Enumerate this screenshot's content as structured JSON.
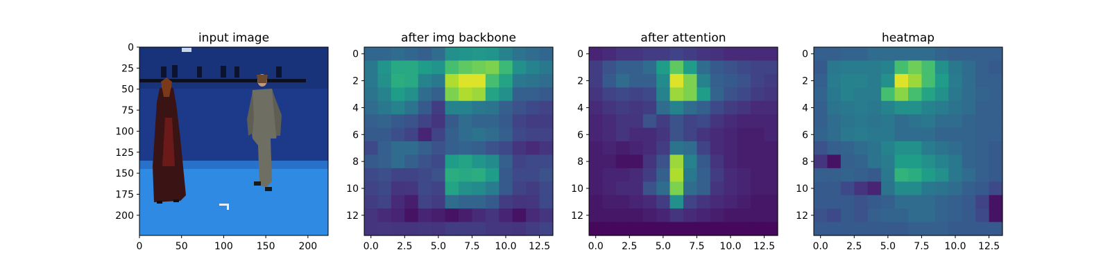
{
  "chart_data": [
    {
      "type": "image",
      "title": "input image",
      "xlim": [
        0,
        224
      ],
      "ylim": [
        224,
        0
      ],
      "xticks": [
        0,
        50,
        100,
        150,
        200
      ],
      "yticks": [
        0,
        25,
        50,
        75,
        100,
        125,
        150,
        175,
        200
      ],
      "xticklabels": [
        "0",
        "50",
        "100",
        "150",
        "200"
      ],
      "yticklabels": [
        "0",
        "25",
        "50",
        "75",
        "100",
        "125",
        "150",
        "175",
        "200"
      ],
      "scene": {
        "backdrop_color": "#1f3c8c",
        "floor_color": "#2f8be3",
        "left_figure": "woman in dark red dress",
        "right_figure": "man in grey clothes"
      }
    },
    {
      "type": "heatmap",
      "title": "after img backbone",
      "colormap": "viridis",
      "xlim": [
        -0.5,
        13.5
      ],
      "ylim": [
        13.5,
        -0.5
      ],
      "xticks": [
        0.0,
        2.5,
        5.0,
        7.5,
        10.0,
        12.5
      ],
      "yticks": [
        0,
        2,
        4,
        6,
        8,
        10,
        12
      ],
      "xticklabels": [
        "0.0",
        "2.5",
        "5.0",
        "7.5",
        "10.0",
        "12.5"
      ],
      "yticklabels": [
        "0",
        "2",
        "4",
        "6",
        "8",
        "10",
        "12"
      ],
      "values": [
        [
          0.33,
          0.33,
          0.35,
          0.33,
          0.3,
          0.35,
          0.5,
          0.52,
          0.53,
          0.52,
          0.45,
          0.38,
          0.35,
          0.33
        ],
        [
          0.4,
          0.52,
          0.6,
          0.6,
          0.55,
          0.52,
          0.7,
          0.75,
          0.78,
          0.8,
          0.68,
          0.5,
          0.45,
          0.4
        ],
        [
          0.4,
          0.5,
          0.62,
          0.6,
          0.45,
          0.4,
          0.88,
          0.95,
          0.95,
          0.7,
          0.58,
          0.4,
          0.38,
          0.35
        ],
        [
          0.38,
          0.45,
          0.55,
          0.5,
          0.35,
          0.3,
          0.8,
          0.88,
          0.85,
          0.58,
          0.5,
          0.3,
          0.3,
          0.28
        ],
        [
          0.35,
          0.4,
          0.45,
          0.38,
          0.28,
          0.18,
          0.45,
          0.45,
          0.4,
          0.38,
          0.3,
          0.25,
          0.22,
          0.2
        ],
        [
          0.3,
          0.32,
          0.28,
          0.25,
          0.2,
          0.15,
          0.28,
          0.35,
          0.32,
          0.32,
          0.28,
          0.2,
          0.18,
          0.18
        ],
        [
          0.28,
          0.28,
          0.24,
          0.2,
          0.1,
          0.2,
          0.3,
          0.35,
          0.38,
          0.35,
          0.3,
          0.22,
          0.2,
          0.2
        ],
        [
          0.22,
          0.3,
          0.35,
          0.35,
          0.3,
          0.25,
          0.3,
          0.32,
          0.3,
          0.25,
          0.22,
          0.15,
          0.12,
          0.15
        ],
        [
          0.28,
          0.3,
          0.35,
          0.3,
          0.25,
          0.22,
          0.55,
          0.58,
          0.52,
          0.48,
          0.3,
          0.2,
          0.22,
          0.22
        ],
        [
          0.22,
          0.24,
          0.2,
          0.2,
          0.22,
          0.25,
          0.62,
          0.6,
          0.62,
          0.55,
          0.28,
          0.22,
          0.22,
          0.25
        ],
        [
          0.2,
          0.22,
          0.15,
          0.16,
          0.22,
          0.2,
          0.58,
          0.5,
          0.48,
          0.42,
          0.28,
          0.2,
          0.18,
          0.22
        ],
        [
          0.18,
          0.2,
          0.12,
          0.08,
          0.2,
          0.18,
          0.35,
          0.32,
          0.32,
          0.28,
          0.18,
          0.15,
          0.16,
          0.22
        ],
        [
          0.15,
          0.12,
          0.1,
          0.05,
          0.1,
          0.08,
          0.05,
          0.08,
          0.12,
          0.15,
          0.1,
          0.05,
          0.12,
          0.15
        ],
        [
          0.15,
          0.16,
          0.15,
          0.15,
          0.16,
          0.15,
          0.18,
          0.18,
          0.18,
          0.16,
          0.16,
          0.15,
          0.18,
          0.2
        ]
      ]
    },
    {
      "type": "heatmap",
      "title": "after attention",
      "colormap": "viridis",
      "xlim": [
        -0.5,
        13.5
      ],
      "ylim": [
        13.5,
        -0.5
      ],
      "xticks": [
        0.0,
        2.5,
        5.0,
        7.5,
        10.0,
        12.5
      ],
      "yticks": [
        0,
        2,
        4,
        6,
        8,
        10,
        12
      ],
      "xticklabels": [
        "0.0",
        "2.5",
        "5.0",
        "7.5",
        "10.0",
        "12.5"
      ],
      "yticklabels": [
        "0",
        "2",
        "4",
        "6",
        "8",
        "10",
        "12"
      ],
      "values": [
        [
          0.1,
          0.12,
          0.15,
          0.15,
          0.18,
          0.18,
          0.2,
          0.18,
          0.15,
          0.14,
          0.12,
          0.12,
          0.12,
          0.12
        ],
        [
          0.18,
          0.25,
          0.3,
          0.3,
          0.35,
          0.55,
          0.75,
          0.55,
          0.35,
          0.28,
          0.25,
          0.22,
          0.2,
          0.2
        ],
        [
          0.18,
          0.28,
          0.35,
          0.3,
          0.3,
          0.48,
          0.95,
          0.8,
          0.45,
          0.3,
          0.28,
          0.25,
          0.2,
          0.18
        ],
        [
          0.15,
          0.2,
          0.22,
          0.2,
          0.22,
          0.45,
          0.85,
          0.8,
          0.55,
          0.32,
          0.25,
          0.22,
          0.18,
          0.16
        ],
        [
          0.12,
          0.15,
          0.18,
          0.16,
          0.18,
          0.35,
          0.45,
          0.35,
          0.3,
          0.22,
          0.18,
          0.15,
          0.12,
          0.12
        ],
        [
          0.1,
          0.12,
          0.15,
          0.15,
          0.25,
          0.18,
          0.25,
          0.2,
          0.22,
          0.15,
          0.12,
          0.1,
          0.1,
          0.1
        ],
        [
          0.1,
          0.12,
          0.15,
          0.12,
          0.12,
          0.15,
          0.25,
          0.2,
          0.15,
          0.12,
          0.1,
          0.08,
          0.08,
          0.1
        ],
        [
          0.08,
          0.1,
          0.08,
          0.1,
          0.12,
          0.18,
          0.38,
          0.35,
          0.2,
          0.12,
          0.1,
          0.08,
          0.08,
          0.08
        ],
        [
          0.08,
          0.08,
          0.05,
          0.05,
          0.15,
          0.25,
          0.85,
          0.45,
          0.28,
          0.15,
          0.1,
          0.08,
          0.08,
          0.08
        ],
        [
          0.08,
          0.1,
          0.1,
          0.12,
          0.18,
          0.3,
          0.88,
          0.4,
          0.3,
          0.18,
          0.12,
          0.1,
          0.08,
          0.08
        ],
        [
          0.08,
          0.1,
          0.12,
          0.12,
          0.25,
          0.35,
          0.8,
          0.35,
          0.3,
          0.15,
          0.12,
          0.1,
          0.08,
          0.08
        ],
        [
          0.06,
          0.08,
          0.08,
          0.1,
          0.12,
          0.18,
          0.5,
          0.2,
          0.15,
          0.12,
          0.1,
          0.08,
          0.06,
          0.06
        ],
        [
          0.06,
          0.06,
          0.06,
          0.06,
          0.08,
          0.1,
          0.15,
          0.12,
          0.1,
          0.08,
          0.06,
          0.06,
          0.06,
          0.06
        ],
        [
          0.02,
          0.02,
          0.02,
          0.02,
          0.02,
          0.02,
          0.02,
          0.02,
          0.02,
          0.02,
          0.02,
          0.02,
          0.02,
          0.02
        ]
      ]
    },
    {
      "type": "heatmap",
      "title": "heatmap",
      "colormap": "viridis",
      "xlim": [
        -0.5,
        13.5
      ],
      "ylim": [
        13.5,
        -0.5
      ],
      "xticks": [
        0.0,
        2.5,
        5.0,
        7.5,
        10.0,
        12.5
      ],
      "yticks": [
        0,
        2,
        4,
        6,
        8,
        10,
        12
      ],
      "xticklabels": [
        "0.0",
        "2.5",
        "5.0",
        "7.5",
        "10.0",
        "12.5"
      ],
      "yticklabels": [
        "0",
        "2",
        "4",
        "6",
        "8",
        "10",
        "12"
      ],
      "values": [
        [
          0.3,
          0.3,
          0.32,
          0.32,
          0.35,
          0.35,
          0.35,
          0.35,
          0.35,
          0.32,
          0.3,
          0.3,
          0.3,
          0.3
        ],
        [
          0.28,
          0.4,
          0.42,
          0.42,
          0.42,
          0.45,
          0.7,
          0.78,
          0.7,
          0.5,
          0.4,
          0.35,
          0.3,
          0.28
        ],
        [
          0.3,
          0.42,
          0.45,
          0.45,
          0.42,
          0.5,
          0.95,
          0.85,
          0.7,
          0.55,
          0.42,
          0.35,
          0.3,
          0.3
        ],
        [
          0.32,
          0.4,
          0.45,
          0.42,
          0.42,
          0.7,
          0.82,
          0.7,
          0.58,
          0.5,
          0.4,
          0.35,
          0.32,
          0.3
        ],
        [
          0.3,
          0.38,
          0.4,
          0.42,
          0.4,
          0.45,
          0.5,
          0.5,
          0.45,
          0.42,
          0.38,
          0.35,
          0.3,
          0.3
        ],
        [
          0.3,
          0.35,
          0.38,
          0.4,
          0.38,
          0.4,
          0.35,
          0.38,
          0.4,
          0.35,
          0.35,
          0.32,
          0.3,
          0.3
        ],
        [
          0.32,
          0.35,
          0.4,
          0.42,
          0.4,
          0.4,
          0.35,
          0.35,
          0.35,
          0.32,
          0.32,
          0.32,
          0.3,
          0.3
        ],
        [
          0.25,
          0.3,
          0.32,
          0.35,
          0.38,
          0.45,
          0.5,
          0.5,
          0.42,
          0.38,
          0.35,
          0.32,
          0.3,
          0.28
        ],
        [
          0.15,
          0.05,
          0.3,
          0.32,
          0.38,
          0.42,
          0.55,
          0.55,
          0.5,
          0.45,
          0.4,
          0.32,
          0.3,
          0.28
        ],
        [
          0.3,
          0.3,
          0.32,
          0.3,
          0.28,
          0.4,
          0.65,
          0.62,
          0.55,
          0.5,
          0.4,
          0.35,
          0.3,
          0.28
        ],
        [
          0.28,
          0.28,
          0.22,
          0.15,
          0.1,
          0.38,
          0.48,
          0.48,
          0.4,
          0.38,
          0.35,
          0.3,
          0.28,
          0.22
        ],
        [
          0.28,
          0.28,
          0.28,
          0.25,
          0.28,
          0.3,
          0.35,
          0.35,
          0.35,
          0.32,
          0.3,
          0.28,
          0.2,
          0.05
        ],
        [
          0.25,
          0.22,
          0.28,
          0.25,
          0.3,
          0.32,
          0.32,
          0.35,
          0.35,
          0.32,
          0.3,
          0.28,
          0.22,
          0.05
        ],
        [
          0.28,
          0.28,
          0.28,
          0.28,
          0.28,
          0.28,
          0.28,
          0.3,
          0.3,
          0.3,
          0.28,
          0.28,
          0.28,
          0.28
        ]
      ]
    }
  ]
}
